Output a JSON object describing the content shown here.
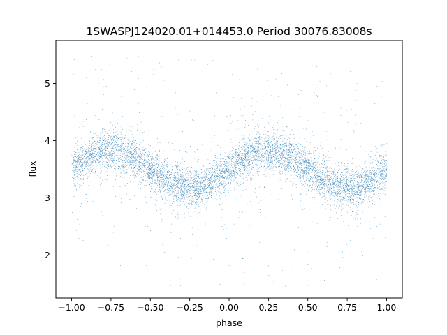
{
  "chart_data": {
    "type": "scatter",
    "title": "1SWASPJ124020.01+014453.0 Period 30076.83008s",
    "xlabel": "phase",
    "ylabel": "flux",
    "xlim": [
      -1.1,
      1.1
    ],
    "ylim": [
      1.25,
      5.75
    ],
    "xticks": [
      -1.0,
      -0.75,
      -0.5,
      -0.25,
      0.0,
      0.25,
      0.5,
      0.75,
      1.0
    ],
    "xtick_labels": [
      "−1.00",
      "−0.75",
      "−0.50",
      "−0.25",
      "0.00",
      "0.25",
      "0.50",
      "0.75",
      "1.00"
    ],
    "yticks": [
      2,
      3,
      4,
      5
    ],
    "ytick_labels": [
      "2",
      "3",
      "4",
      "5"
    ],
    "grid": false,
    "legend": "none",
    "marker_color": "#1f77b4",
    "series": [
      {
        "x_range": [
          -1.0,
          1.0
        ],
        "model": "sinusoid",
        "mean_flux": 3.5,
        "amplitude": 0.33,
        "peak_phases": [
          -0.75,
          0.25
        ],
        "trough_phases": [
          -0.25,
          0.75
        ],
        "core_scatter": 0.17,
        "outlier_range": [
          1.45,
          5.55
        ],
        "approx_points": 40000,
        "sample_curve": [
          {
            "x": -1.0,
            "y": 3.5
          },
          {
            "x": -0.75,
            "y": 3.83
          },
          {
            "x": -0.5,
            "y": 3.5
          },
          {
            "x": -0.25,
            "y": 3.17
          },
          {
            "x": 0.0,
            "y": 3.5
          },
          {
            "x": 0.25,
            "y": 3.83
          },
          {
            "x": 0.5,
            "y": 3.5
          },
          {
            "x": 0.75,
            "y": 3.17
          },
          {
            "x": 1.0,
            "y": 3.5
          }
        ]
      }
    ]
  }
}
